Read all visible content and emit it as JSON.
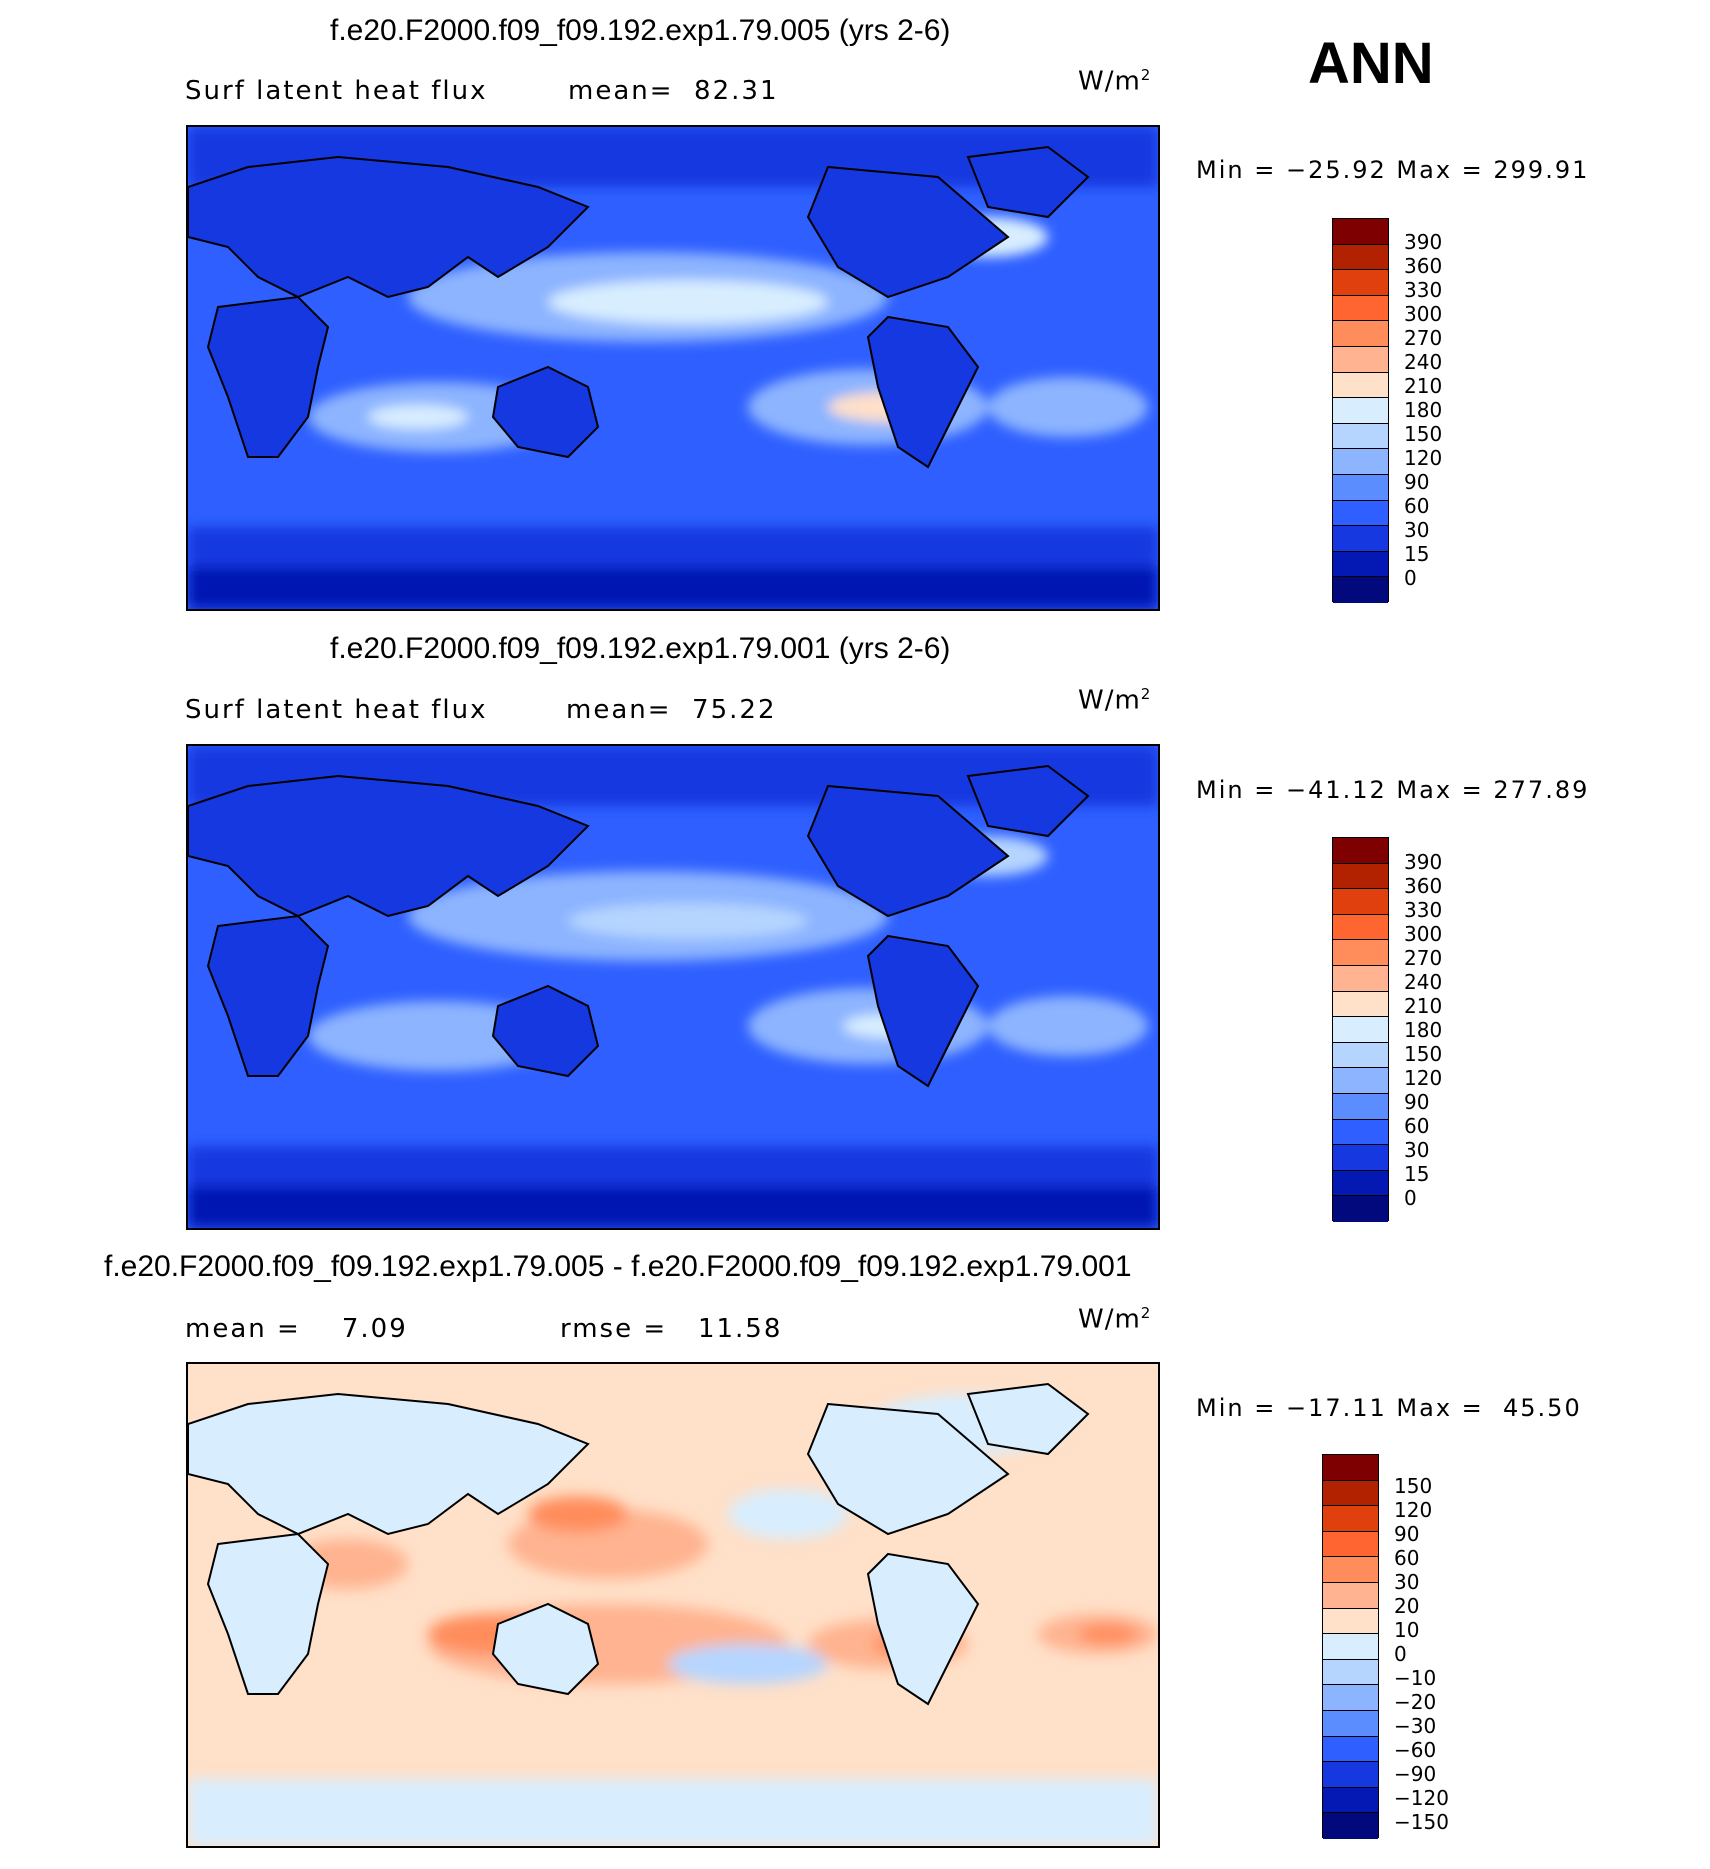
{
  "season": "ANN",
  "panels": [
    {
      "title": "f.e20.F2000.f09_f09.192.exp1.79.005 (yrs 2-6)",
      "field": "Surf latent heat flux",
      "stat1": "mean=  82.31",
      "stat2": "",
      "units": "W/m",
      "units_exp": "2",
      "minmax": "Min = −25.92 Max = 299.91",
      "colorbar": {
        "colors": [
          "#7f0000",
          "#b22200",
          "#e0400e",
          "#ff6530",
          "#ff8d5c",
          "#ffb390",
          "#ffe0c8",
          "#d8eeff",
          "#b5d5ff",
          "#8cb4ff",
          "#5c8dff",
          "#2f60ff",
          "#1538e0",
          "#0418b3",
          "#01097c"
        ],
        "labels": [
          "390",
          "360",
          "330",
          "300",
          "270",
          "240",
          "210",
          "180",
          "150",
          "120",
          "90",
          "60",
          "30",
          "15",
          "0"
        ]
      }
    },
    {
      "title": "f.e20.F2000.f09_f09.192.exp1.79.001 (yrs 2-6)",
      "field": "Surf latent heat flux",
      "stat1": "mean=  75.22",
      "stat2": "",
      "units": "W/m",
      "units_exp": "2",
      "minmax": "Min = −41.12 Max = 277.89",
      "colorbar": {
        "colors": [
          "#7f0000",
          "#b22200",
          "#e0400e",
          "#ff6530",
          "#ff8d5c",
          "#ffb390",
          "#ffe0c8",
          "#d8eeff",
          "#b5d5ff",
          "#8cb4ff",
          "#5c8dff",
          "#2f60ff",
          "#1538e0",
          "#0418b3",
          "#01097c"
        ],
        "labels": [
          "390",
          "360",
          "330",
          "300",
          "270",
          "240",
          "210",
          "180",
          "150",
          "120",
          "90",
          "60",
          "30",
          "15",
          "0"
        ]
      }
    },
    {
      "title": "f.e20.F2000.f09_f09.192.exp1.79.005 - f.e20.F2000.f09_f09.192.exp1.79.001",
      "field": "mean =    7.09",
      "stat1": "rmse =   11.58",
      "stat2": "",
      "units": "W/m",
      "units_exp": "2",
      "minmax": "Min = −17.11 Max =  45.50",
      "colorbar": {
        "colors": [
          "#7f0000",
          "#b22200",
          "#e0400e",
          "#ff6530",
          "#ff8d5c",
          "#ffb390",
          "#ffe0c8",
          "#d8eeff",
          "#b5d5ff",
          "#8cb4ff",
          "#5c8dff",
          "#2f60ff",
          "#1538e0",
          "#0418b3",
          "#01097c"
        ],
        "labels": [
          "150",
          "120",
          "90",
          "60",
          "30",
          "20",
          "10",
          "0",
          "−10",
          "−20",
          "−30",
          "−60",
          "−90",
          "−120",
          "−150"
        ]
      }
    }
  ]
}
